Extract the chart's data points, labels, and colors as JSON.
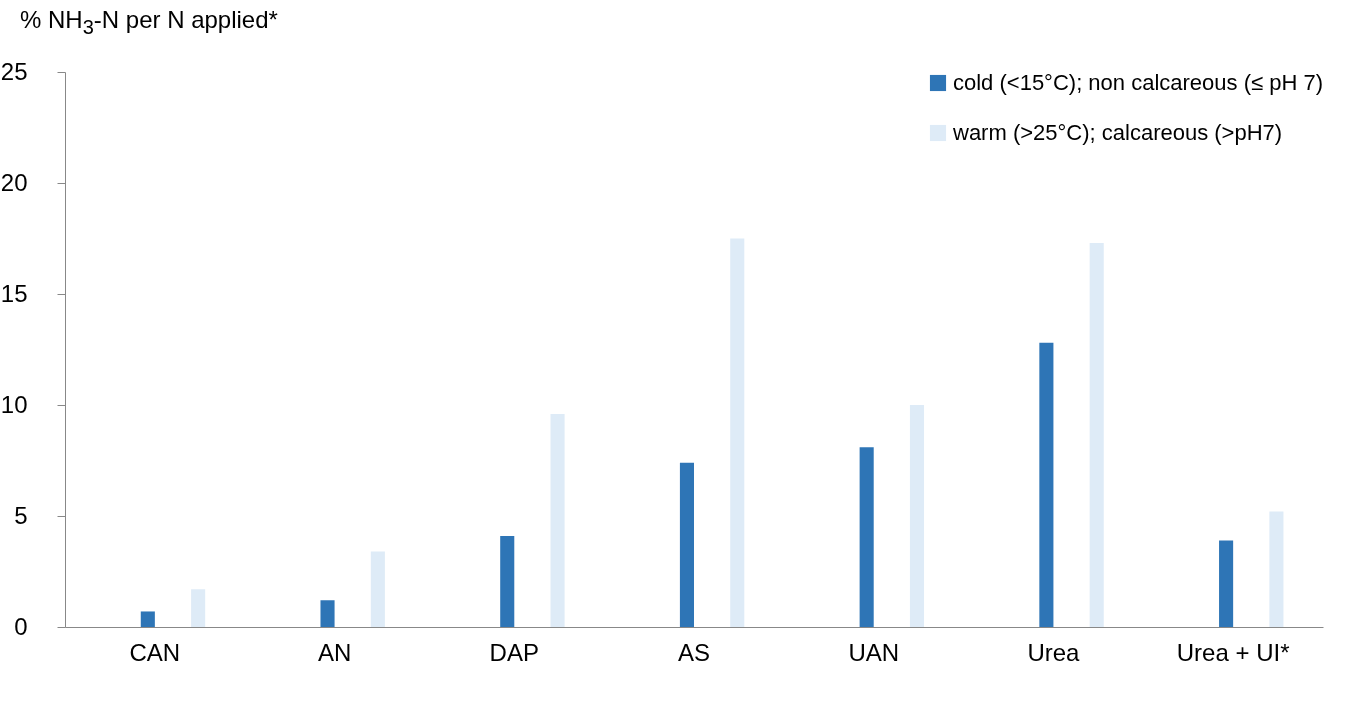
{
  "chart_data": {
    "type": "bar",
    "ylabel": "% NH$_{3}$-N per N applied*",
    "categories": [
      "CAN",
      "AN",
      "DAP",
      "AS",
      "UAN",
      "Urea",
      "Urea + UI*"
    ],
    "series": [
      {
        "name": "cold (<15°C); non calcareous (≤ pH 7)",
        "color": "#2e75b6",
        "values": [
          0.7,
          1.2,
          4.1,
          7.4,
          8.1,
          12.8,
          3.9
        ]
      },
      {
        "name": "warm (>25°C); calcareous (>pH7)",
        "color": "#deebf7",
        "values": [
          1.7,
          3.4,
          9.6,
          17.5,
          10.0,
          17.3,
          5.2
        ]
      }
    ],
    "ylim": [
      0,
      25
    ],
    "yticks": [
      0,
      5,
      10,
      15,
      20,
      25
    ],
    "grid": false,
    "legend": "top right"
  }
}
